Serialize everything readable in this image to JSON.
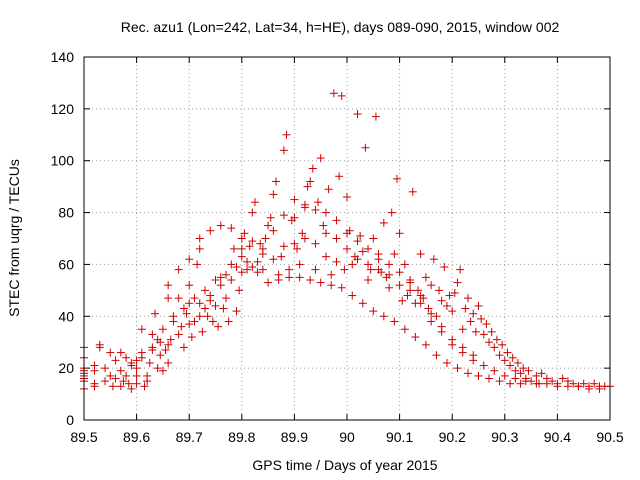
{
  "chart_data": {
    "type": "scatter",
    "title": "Rec. azu1 (Lon=242, Lat=34, h=HE), days 089-090, 2015, window 002",
    "xlabel": "GPS time / Days of year 2015",
    "ylabel": "STEC from uqrg / TECUs",
    "xlim": [
      89.5,
      90.5
    ],
    "ylim": [
      0,
      140
    ],
    "xticks": [
      "89.5",
      "89.6",
      "89.7",
      "89.8",
      "89.9",
      "90",
      "90.1",
      "90.2",
      "90.3",
      "90.4",
      "90.5"
    ],
    "yticks": [
      "0",
      "20",
      "40",
      "60",
      "80",
      "100",
      "120",
      "140"
    ],
    "grid": true,
    "marker": "plus",
    "color": "#cc0000",
    "series": [
      {
        "name": "STEC",
        "points": [
          [
            89.5,
            12
          ],
          [
            89.5,
            15
          ],
          [
            89.5,
            16
          ],
          [
            89.5,
            17
          ],
          [
            89.5,
            18
          ],
          [
            89.5,
            19
          ],
          [
            89.5,
            20
          ],
          [
            89.5,
            24
          ],
          [
            89.5,
            28
          ],
          [
            89.52,
            13
          ],
          [
            89.52,
            14
          ],
          [
            89.52,
            19
          ],
          [
            89.52,
            21
          ],
          [
            89.53,
            28
          ],
          [
            89.54,
            15
          ],
          [
            89.55,
            26
          ],
          [
            89.555,
            13
          ],
          [
            89.56,
            16
          ],
          [
            89.57,
            26
          ],
          [
            89.57,
            13
          ],
          [
            89.575,
            15
          ],
          [
            89.58,
            17
          ],
          [
            89.585,
            14
          ],
          [
            89.59,
            12
          ],
          [
            89.6,
            14
          ],
          [
            89.6,
            17
          ],
          [
            89.6,
            20
          ],
          [
            89.6,
            23
          ],
          [
            89.61,
            35
          ],
          [
            89.615,
            13
          ],
          [
            89.62,
            15
          ],
          [
            89.62,
            17
          ],
          [
            89.625,
            22
          ],
          [
            89.63,
            33
          ],
          [
            89.635,
            41
          ],
          [
            89.64,
            20
          ],
          [
            89.645,
            25
          ],
          [
            89.645,
            30
          ],
          [
            89.65,
            19
          ],
          [
            89.655,
            27
          ],
          [
            89.66,
            47
          ],
          [
            89.66,
            22
          ],
          [
            89.665,
            31
          ],
          [
            89.67,
            40
          ],
          [
            89.68,
            47
          ],
          [
            89.685,
            36
          ],
          [
            89.69,
            28
          ],
          [
            89.695,
            41
          ],
          [
            89.7,
            45
          ],
          [
            89.7,
            52
          ],
          [
            89.705,
            32
          ],
          [
            89.71,
            38
          ],
          [
            89.715,
            60
          ],
          [
            89.72,
            66
          ],
          [
            89.72,
            45
          ],
          [
            89.725,
            34
          ],
          [
            89.73,
            43
          ],
          [
            89.735,
            40
          ],
          [
            89.74,
            48
          ],
          [
            89.745,
            38
          ],
          [
            89.75,
            44
          ],
          [
            89.755,
            36
          ],
          [
            89.76,
            55
          ],
          [
            89.765,
            43
          ],
          [
            89.77,
            47
          ],
          [
            89.775,
            38
          ],
          [
            89.78,
            54
          ],
          [
            89.785,
            66
          ],
          [
            89.79,
            42
          ],
          [
            89.795,
            50
          ],
          [
            89.8,
            66
          ],
          [
            89.8,
            57
          ],
          [
            89.805,
            72
          ],
          [
            89.81,
            58
          ],
          [
            89.815,
            67
          ],
          [
            89.82,
            80
          ],
          [
            89.825,
            84
          ],
          [
            89.83,
            61
          ],
          [
            89.835,
            68
          ],
          [
            89.84,
            58
          ],
          [
            89.845,
            70
          ],
          [
            89.85,
            75
          ],
          [
            89.855,
            78
          ],
          [
            89.86,
            87
          ],
          [
            89.865,
            92
          ],
          [
            89.87,
            56
          ],
          [
            89.875,
            63
          ],
          [
            89.88,
            104
          ],
          [
            89.885,
            110
          ],
          [
            89.89,
            58
          ],
          [
            89.895,
            77
          ],
          [
            89.9,
            85
          ],
          [
            89.905,
            66
          ],
          [
            89.91,
            60
          ],
          [
            89.915,
            72
          ],
          [
            89.92,
            82
          ],
          [
            89.925,
            90
          ],
          [
            89.93,
            92
          ],
          [
            89.935,
            97
          ],
          [
            89.94,
            58
          ],
          [
            89.945,
            84
          ],
          [
            89.95,
            101
          ],
          [
            89.955,
            75
          ],
          [
            89.96,
            63
          ],
          [
            89.965,
            89
          ],
          [
            89.97,
            56
          ],
          [
            89.975,
            126
          ],
          [
            89.98,
            61
          ],
          [
            89.985,
            94
          ],
          [
            89.99,
            125
          ],
          [
            89.995,
            58
          ],
          [
            90.0,
            86
          ],
          [
            90.005,
            73
          ],
          [
            90.01,
            60
          ],
          [
            90.015,
            63
          ],
          [
            90.02,
            118
          ],
          [
            90.025,
            71
          ],
          [
            90.03,
            65
          ],
          [
            90.035,
            105
          ],
          [
            90.04,
            54
          ],
          [
            90.045,
            58
          ],
          [
            90.05,
            70
          ],
          [
            90.055,
            117
          ],
          [
            90.06,
            62
          ],
          [
            90.065,
            57
          ],
          [
            90.07,
            76
          ],
          [
            90.075,
            55
          ],
          [
            90.08,
            51
          ],
          [
            90.085,
            80
          ],
          [
            90.09,
            64
          ],
          [
            90.095,
            93
          ],
          [
            90.1,
            72
          ],
          [
            90.105,
            46
          ],
          [
            90.11,
            60
          ],
          [
            90.115,
            48
          ],
          [
            90.12,
            54
          ],
          [
            90.125,
            88
          ],
          [
            90.13,
            45
          ],
          [
            90.135,
            50
          ],
          [
            90.14,
            64
          ],
          [
            90.145,
            47
          ],
          [
            90.15,
            55
          ],
          [
            90.155,
            43
          ],
          [
            90.16,
            52
          ],
          [
            90.165,
            62
          ],
          [
            90.17,
            40
          ],
          [
            90.175,
            50
          ],
          [
            90.18,
            46
          ],
          [
            90.185,
            59
          ],
          [
            90.19,
            44
          ],
          [
            90.195,
            48
          ],
          [
            90.2,
            42
          ],
          [
            90.205,
            49
          ],
          [
            90.21,
            53
          ],
          [
            90.215,
            58
          ],
          [
            90.22,
            35
          ],
          [
            90.225,
            43
          ],
          [
            90.23,
            47
          ],
          [
            90.235,
            38
          ],
          [
            90.24,
            41
          ],
          [
            90.245,
            34
          ],
          [
            90.25,
            44
          ],
          [
            90.255,
            39
          ],
          [
            90.26,
            33
          ],
          [
            90.265,
            37
          ],
          [
            90.27,
            30
          ],
          [
            90.275,
            34
          ],
          [
            90.28,
            28
          ],
          [
            90.285,
            31
          ],
          [
            90.29,
            25
          ],
          [
            90.295,
            29
          ],
          [
            90.3,
            23
          ],
          [
            90.305,
            26
          ],
          [
            90.31,
            21
          ],
          [
            90.315,
            24
          ],
          [
            90.32,
            19
          ],
          [
            90.325,
            22
          ],
          [
            90.33,
            18
          ],
          [
            90.335,
            20
          ],
          [
            90.34,
            16
          ],
          [
            90.345,
            19
          ],
          [
            90.35,
            15
          ],
          [
            90.36,
            17
          ],
          [
            90.365,
            14
          ],
          [
            90.37,
            18
          ],
          [
            90.38,
            16
          ],
          [
            90.39,
            15
          ],
          [
            90.4,
            14
          ],
          [
            90.41,
            16
          ],
          [
            90.42,
            15
          ],
          [
            90.43,
            14
          ],
          [
            90.44,
            13
          ],
          [
            90.45,
            14
          ],
          [
            90.46,
            13
          ],
          [
            90.47,
            14
          ],
          [
            90.48,
            13
          ],
          [
            90.49,
            13
          ],
          [
            90.5,
            13
          ],
          [
            89.53,
            29
          ],
          [
            89.54,
            20
          ],
          [
            89.56,
            23
          ],
          [
            89.58,
            24
          ],
          [
            89.59,
            21
          ],
          [
            89.61,
            26
          ],
          [
            89.63,
            28
          ],
          [
            89.64,
            31
          ],
          [
            89.66,
            29
          ],
          [
            89.68,
            33
          ],
          [
            89.7,
            37
          ],
          [
            89.72,
            40
          ],
          [
            89.74,
            46
          ],
          [
            89.76,
            52
          ],
          [
            89.78,
            60
          ],
          [
            89.8,
            63
          ],
          [
            89.82,
            59
          ],
          [
            89.84,
            64
          ],
          [
            89.86,
            62
          ],
          [
            89.88,
            67
          ],
          [
            89.9,
            68
          ],
          [
            89.92,
            70
          ],
          [
            89.94,
            68
          ],
          [
            89.96,
            72
          ],
          [
            89.98,
            70
          ],
          [
            90.0,
            66
          ],
          [
            90.02,
            62
          ],
          [
            90.04,
            60
          ],
          [
            90.06,
            58
          ],
          [
            90.08,
            56
          ],
          [
            90.1,
            52
          ],
          [
            90.12,
            50
          ],
          [
            90.14,
            45
          ],
          [
            90.16,
            38
          ],
          [
            90.18,
            34
          ],
          [
            90.2,
            29
          ],
          [
            90.22,
            26
          ],
          [
            90.24,
            23
          ],
          [
            90.26,
            21
          ],
          [
            90.28,
            19
          ],
          [
            90.3,
            17
          ],
          [
            90.32,
            16
          ],
          [
            90.34,
            15
          ],
          [
            90.36,
            14
          ],
          [
            90.38,
            14
          ],
          [
            90.4,
            13
          ],
          [
            90.42,
            13
          ],
          [
            90.44,
            13
          ],
          [
            90.46,
            12
          ],
          [
            90.48,
            12
          ],
          [
            89.55,
            17
          ],
          [
            89.57,
            19
          ],
          [
            89.59,
            22
          ],
          [
            89.61,
            24
          ],
          [
            89.63,
            27
          ],
          [
            89.65,
            35
          ],
          [
            89.67,
            38
          ],
          [
            89.69,
            43
          ],
          [
            89.71,
            47
          ],
          [
            89.73,
            50
          ],
          [
            89.75,
            54
          ],
          [
            89.77,
            56
          ],
          [
            89.79,
            59
          ],
          [
            89.81,
            61
          ],
          [
            89.83,
            57
          ],
          [
            89.85,
            53
          ],
          [
            89.87,
            54
          ],
          [
            89.89,
            55
          ],
          [
            89.91,
            55
          ],
          [
            89.93,
            54
          ],
          [
            89.95,
            53
          ],
          [
            89.97,
            52
          ],
          [
            89.99,
            51
          ],
          [
            90.01,
            48
          ],
          [
            90.03,
            45
          ],
          [
            90.05,
            42
          ],
          [
            90.07,
            40
          ],
          [
            90.09,
            38
          ],
          [
            90.11,
            35
          ],
          [
            90.13,
            32
          ],
          [
            90.15,
            29
          ],
          [
            90.17,
            25
          ],
          [
            90.19,
            22
          ],
          [
            90.21,
            20
          ],
          [
            90.23,
            18
          ],
          [
            90.25,
            17
          ],
          [
            90.27,
            16
          ],
          [
            90.29,
            15
          ],
          [
            90.31,
            14
          ],
          [
            90.33,
            14
          ],
          [
            89.66,
            52
          ],
          [
            89.68,
            58
          ],
          [
            89.7,
            62
          ],
          [
            89.72,
            70
          ],
          [
            89.74,
            73
          ],
          [
            89.76,
            75
          ],
          [
            89.78,
            74
          ],
          [
            89.8,
            70
          ],
          [
            89.82,
            69
          ],
          [
            89.84,
            66
          ],
          [
            89.86,
            73
          ],
          [
            89.88,
            79
          ],
          [
            89.9,
            78
          ],
          [
            89.92,
            83
          ],
          [
            89.94,
            81
          ],
          [
            89.96,
            80
          ],
          [
            89.98,
            77
          ],
          [
            90.0,
            72
          ],
          [
            90.02,
            69
          ],
          [
            90.04,
            66
          ],
          [
            90.06,
            64
          ],
          [
            90.08,
            60
          ],
          [
            90.1,
            57
          ],
          [
            90.12,
            53
          ],
          [
            90.14,
            48
          ],
          [
            90.16,
            41
          ],
          [
            90.18,
            36
          ],
          [
            90.2,
            31
          ],
          [
            90.22,
            28
          ],
          [
            90.24,
            25
          ]
        ]
      }
    ]
  }
}
